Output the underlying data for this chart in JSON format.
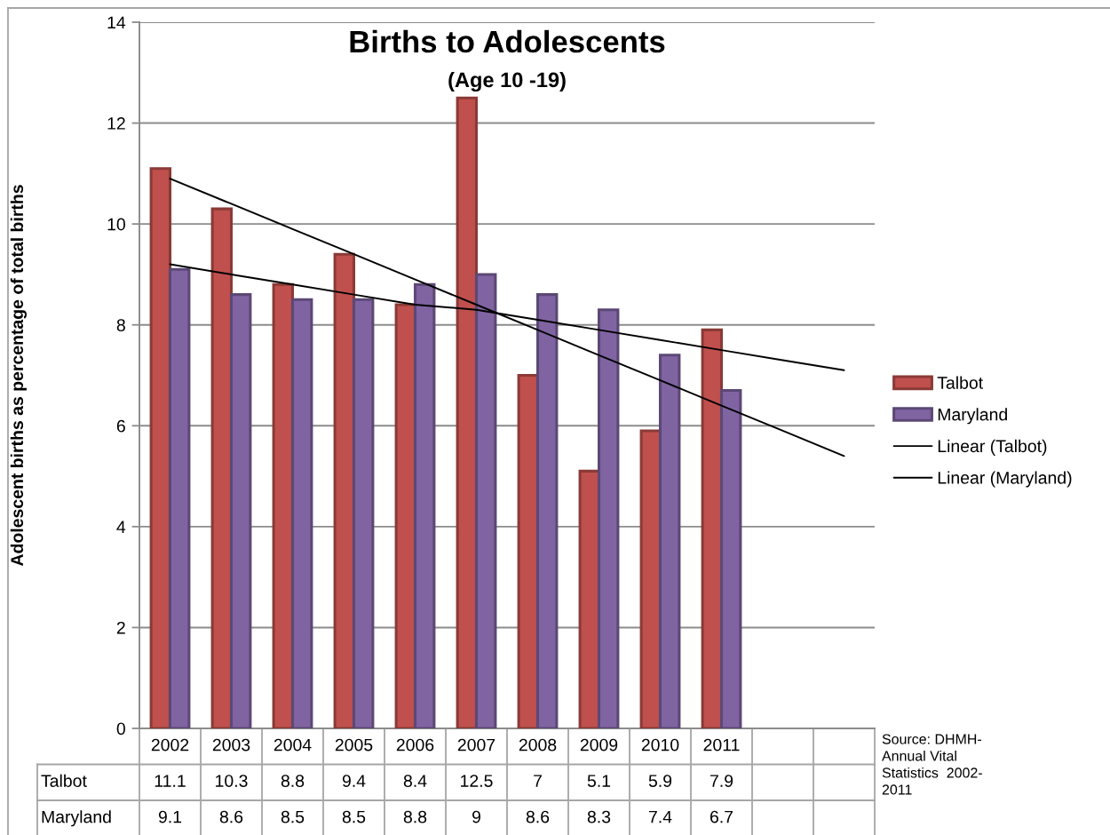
{
  "chart_data": {
    "type": "bar",
    "title": "Births to Adolescents",
    "subtitle": "(Age 10 -19)",
    "ylabel": "Adolescent births as percentage of total births",
    "categories": [
      "2002",
      "2003",
      "2004",
      "2005",
      "2006",
      "2007",
      "2008",
      "2009",
      "2010",
      "2011",
      null,
      null
    ],
    "series": [
      {
        "name": "Talbot",
        "color": "#c0504d",
        "values": [
          11.1,
          10.3,
          8.8,
          9.4,
          8.4,
          12.5,
          7,
          5.1,
          5.9,
          7.9,
          null,
          null
        ],
        "value_labels": [
          "11.1",
          "10.3",
          "8.8",
          "9.4",
          "8.4",
          "12.5",
          "7",
          "5.1",
          "5.9",
          "7.9",
          null,
          null
        ]
      },
      {
        "name": "Maryland",
        "color": "#8064a2",
        "values": [
          9.1,
          8.6,
          8.5,
          8.5,
          8.8,
          9,
          8.6,
          8.3,
          7.4,
          6.7,
          null,
          null
        ],
        "value_labels": [
          "9.1",
          "8.6",
          "8.5",
          "8.5",
          "8.8",
          "9",
          "8.6",
          "8.3",
          "7.4",
          "6.7",
          null,
          null
        ]
      },
      {
        "name": "Linear (Talbot)",
        "type": "line",
        "color": "#000000",
        "values": [
          10.9,
          10.4,
          9.9,
          9.4,
          8.9,
          8.4,
          7.9,
          7.4,
          6.9,
          6.4,
          5.9,
          5.4
        ]
      },
      {
        "name": "Linear (Maryland)",
        "type": "line",
        "color": "#000000",
        "values": [
          9.2,
          9.0,
          8.8,
          8.6,
          8.4,
          8.3,
          8.1,
          7.9,
          7.7,
          7.5,
          7.3,
          7.1
        ]
      }
    ],
    "ylim": [
      0,
      14
    ],
    "yticks": [
      0,
      2,
      4,
      6,
      8,
      10,
      12,
      14
    ],
    "grid": "y",
    "legend": "right",
    "annotations": [
      "Source: DHMH-\nAnnual Vital\nStatistics  2002-\n2011"
    ]
  }
}
